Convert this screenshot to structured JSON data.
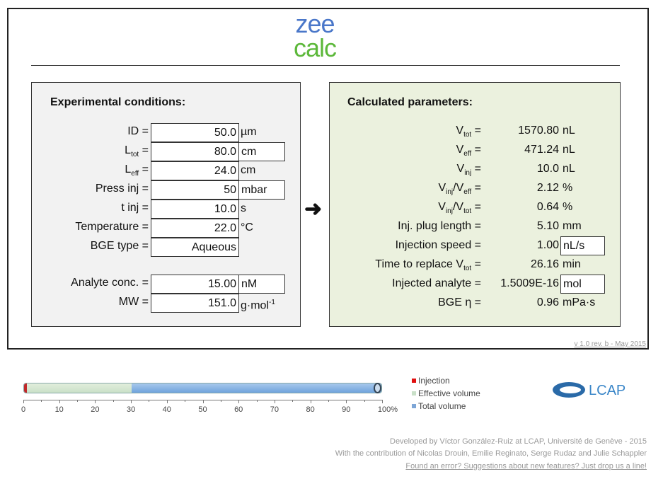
{
  "logo": {
    "line1": "zee",
    "line2": "calc"
  },
  "left": {
    "title": "Experimental conditions:",
    "rows": [
      {
        "label": "ID =",
        "value": "50.0",
        "unit": "µm"
      },
      {
        "label_main": "L",
        "label_sub": "tot",
        "label_eq": " =",
        "value": "80.0",
        "unit": "cm"
      },
      {
        "label_main": "L",
        "label_sub": "eff",
        "label_eq": " =",
        "value": "24.0",
        "unit": "cm"
      },
      {
        "label": "Press inj =",
        "value": "50",
        "unit": "mbar"
      },
      {
        "label": "t inj =",
        "value": "10.0",
        "unit": "s"
      },
      {
        "label": "Temperature =",
        "value": "22.0",
        "unit": "°C"
      },
      {
        "label": "BGE type =",
        "value": "Aqueous"
      },
      {
        "label": "Analyte conc. =",
        "value": "15.00",
        "unit": "nM"
      },
      {
        "label": "MW =",
        "value": "151.0",
        "unit": "g·mol",
        "unit_sup": "-1"
      }
    ]
  },
  "arrow": "➜",
  "right": {
    "title": "Calculated parameters:",
    "rows": [
      {
        "l1": "V",
        "s1": "tot",
        "l3": " =",
        "value": "1570.80",
        "unit": "nL"
      },
      {
        "l1": "V",
        "s1": "eff",
        "l3": " =",
        "value": "471.24",
        "unit": "nL"
      },
      {
        "l1": "V",
        "s1": "inj",
        "l3": " =",
        "value": "10.0",
        "unit": "nL"
      },
      {
        "l1": "V",
        "s1": "inj",
        "l2": "/V",
        "s2": "eff",
        "l3": " =",
        "value": "2.12",
        "unit": "%"
      },
      {
        "l1": "V",
        "s1": "inj",
        "l2": "/V",
        "s2": "tot",
        "l3": " =",
        "value": "0.64",
        "unit": "%"
      },
      {
        "l1": "Inj. plug length =",
        "value": "5.10",
        "unit": "mm"
      },
      {
        "l1": "Injection speed =",
        "value": "1.00",
        "unit": "nL/s"
      },
      {
        "l1": "Time to replace V",
        "s1": "tot",
        "l3": " =",
        "value": "26.16",
        "unit": "min"
      },
      {
        "l1": "Injected analyte =",
        "value": "1.5009E-16",
        "unit": "mol"
      },
      {
        "l1": "BGE η  =",
        "value": "0.96",
        "unit": "mPa·s"
      }
    ]
  },
  "version": "v 1.0 rev. b - May 2015",
  "volume_bar": {
    "injection_pct": 0.64,
    "effective_pct": 30,
    "total_pct": 100,
    "ticks": [
      "0",
      "10",
      "20",
      "30",
      "40",
      "50",
      "60",
      "70",
      "80",
      "90",
      "100%"
    ],
    "colors": {
      "injection": "#c0282a",
      "effective": "#c9e0c8",
      "total": "#6fa3dc"
    }
  },
  "legend": [
    "Injection",
    "Effective volume",
    "Total volume"
  ],
  "lcap_logo": "LCAP",
  "footer": [
    "Developed by Víctor González-Ruiz at LCAP, Université de Genève - 2015",
    "With the contribution of Nicolas Drouin, Emilie Reginato, Serge Rudaz and Julie Schappler",
    "Found an error? Suggestions about new features? Just drop us a line!"
  ]
}
